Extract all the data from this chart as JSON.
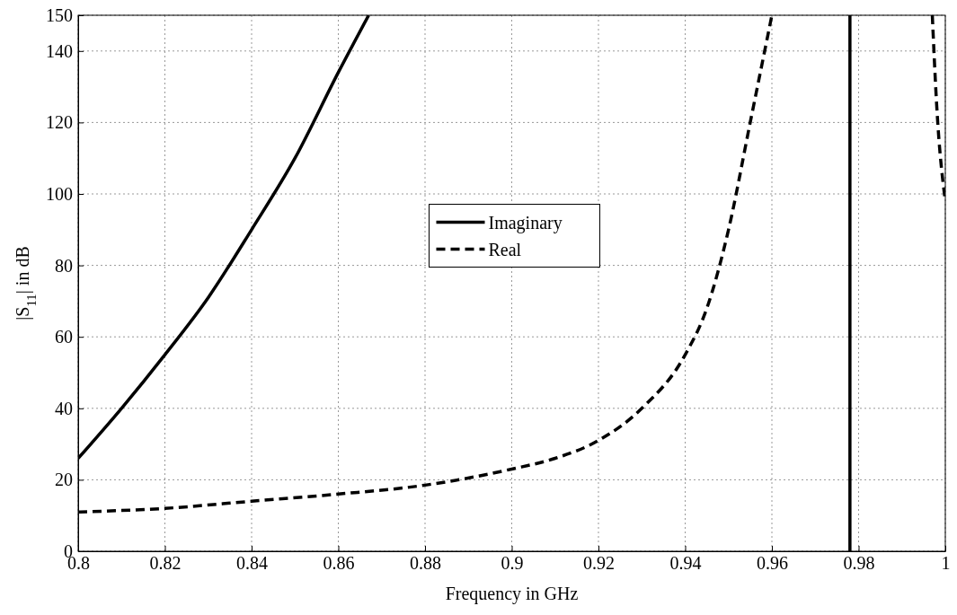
{
  "chart_data": {
    "type": "line",
    "xlabel": "Frequency in GHz",
    "ylabel": "|S$_{11}$| in dB",
    "xlim": [
      0.8,
      1
    ],
    "xticks": [
      0.8,
      0.82,
      0.84,
      0.86,
      0.88,
      0.9,
      0.92,
      0.94,
      0.96,
      0.98,
      1
    ],
    "ylim": [
      0,
      150
    ],
    "yticks": [
      0,
      20,
      40,
      60,
      80,
      100,
      120,
      140,
      150
    ],
    "grid": true,
    "legend": "center",
    "series": [
      {
        "name": "Imaginary",
        "color": "#000000",
        "line_style": "solid",
        "x": [
          0.8,
          0.81,
          0.82,
          0.83,
          0.84,
          0.85,
          0.86,
          0.867,
          0.97,
          0.978,
          0.978
        ],
        "values": [
          26,
          40,
          55,
          71,
          90,
          110,
          134,
          150,
          null,
          0,
          150
        ]
      },
      {
        "name": "Real",
        "color": "#000000",
        "line_style": "dashed",
        "x": [
          0.8,
          0.82,
          0.84,
          0.86,
          0.88,
          0.9,
          0.91,
          0.92,
          0.93,
          0.94,
          0.945,
          0.95,
          0.955,
          0.96,
          0.98,
          0.997,
          0.998,
          1
        ],
        "values": [
          11,
          12,
          14,
          16,
          18.5,
          23,
          26,
          31,
          40,
          55,
          68,
          90,
          120,
          150,
          null,
          150,
          125,
          98
        ]
      }
    ]
  }
}
